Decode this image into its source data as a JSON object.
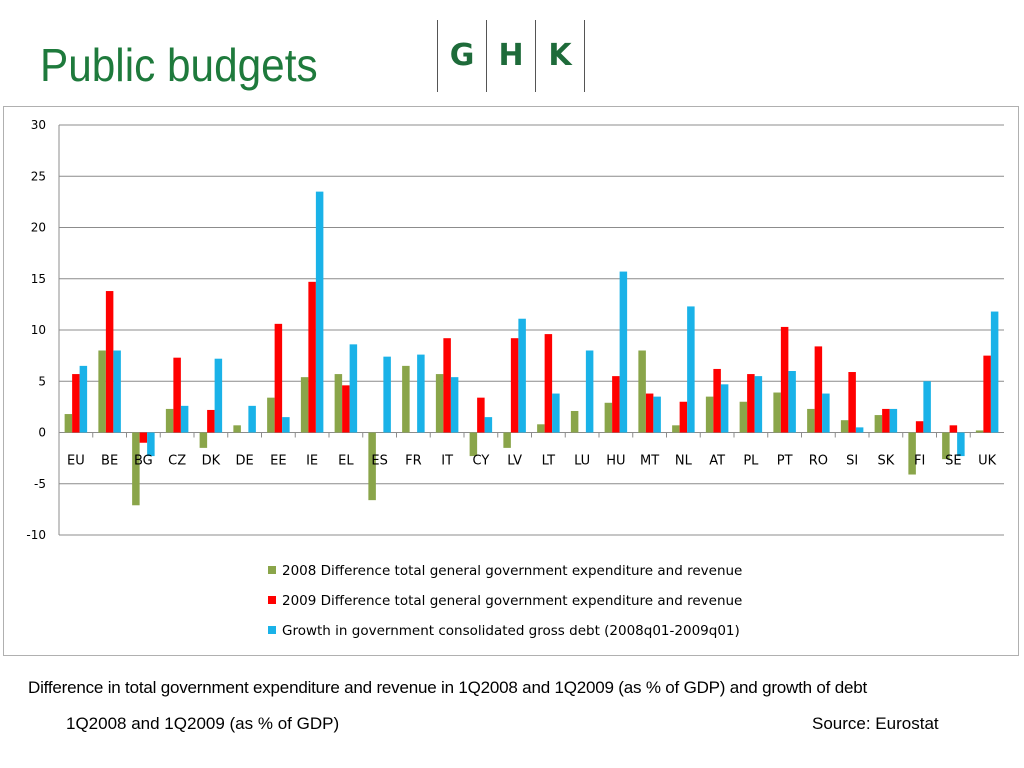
{
  "page": {
    "title": "Public budgets",
    "logo_letters": [
      "G",
      "H",
      "K"
    ],
    "caption_line1": "Difference in total government expenditure and revenue in 1Q2008 and 1Q2009 (as % of GDP) and growth of debt",
    "caption_line2": "1Q2008 and 1Q2009 (as % of GDP)",
    "source": "Source: Eurostat"
  },
  "chart_data": {
    "type": "bar",
    "categories": [
      "EU",
      "BE",
      "BG",
      "CZ",
      "DK",
      "DE",
      "EE",
      "IE",
      "EL",
      "ES",
      "FR",
      "IT",
      "CY",
      "LV",
      "LT",
      "LU",
      "HU",
      "MT",
      "NL",
      "AT",
      "PL",
      "PT",
      "RO",
      "SI",
      "SK",
      "FI",
      "SE",
      "UK"
    ],
    "series": [
      {
        "name": "2008 Difference  total general government expenditure and revenue",
        "color": "#8aa54a",
        "values": [
          1.8,
          8.0,
          -7.1,
          2.3,
          -1.5,
          0.7,
          3.4,
          5.4,
          5.7,
          -6.6,
          6.5,
          5.7,
          -2.3,
          -1.5,
          0.8,
          2.1,
          2.9,
          8.0,
          0.7,
          3.5,
          3.0,
          3.9,
          2.3,
          1.2,
          1.7,
          -4.1,
          -2.6,
          0.2
        ]
      },
      {
        "name": "2009 Difference  total general government expenditure and revenue",
        "color": "#ff0000",
        "values": [
          5.7,
          13.8,
          -1.0,
          7.3,
          2.2,
          0.0,
          10.6,
          14.7,
          4.6,
          0.0,
          0.0,
          9.2,
          3.4,
          9.2,
          9.6,
          0.0,
          5.5,
          3.8,
          3.0,
          6.2,
          5.7,
          10.3,
          8.4,
          5.9,
          2.3,
          1.1,
          0.7,
          7.5
        ]
      },
      {
        "name": "Growth in government consolidated gross debt (2008q01-2009q01)",
        "color": "#1ab2e8",
        "values": [
          6.5,
          8.0,
          -2.3,
          2.6,
          7.2,
          2.6,
          1.5,
          23.5,
          8.6,
          7.4,
          7.6,
          5.4,
          1.5,
          11.1,
          3.8,
          8.0,
          15.7,
          3.5,
          12.3,
          4.7,
          5.5,
          6.0,
          3.8,
          0.5,
          2.3,
          5.0,
          -2.3,
          11.8
        ]
      }
    ],
    "yticks": [
      30,
      25,
      20,
      15,
      10,
      5,
      0,
      -5,
      -10
    ],
    "ylim": [
      -10,
      30
    ],
    "grid": true,
    "legend_position": "bottom"
  }
}
